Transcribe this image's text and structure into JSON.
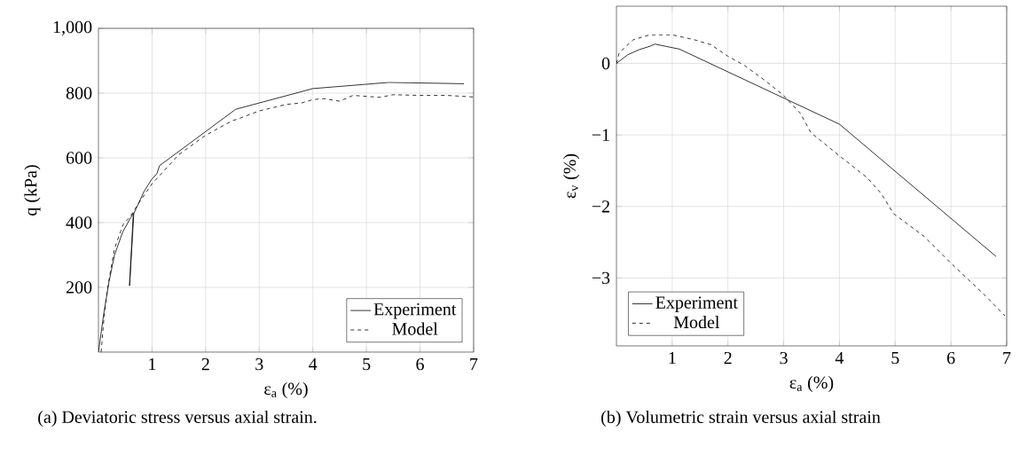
{
  "chart_data": [
    {
      "type": "line",
      "xlabel": "ε$_{a}$ (%)",
      "ylabel": "q (kPa)",
      "xlim": [
        0,
        7
      ],
      "ylim": [
        0,
        1000
      ],
      "xticks": [
        1,
        2,
        3,
        4,
        5,
        6,
        7
      ],
      "yticks": [
        200,
        400,
        600,
        800,
        {
          "value": 1000,
          "label": "1,000"
        }
      ],
      "grid": true,
      "legend": "bottom right",
      "annotations": [
        "(a) Deviatoric stress versus axial strain."
      ],
      "series": [
        {
          "name": "Experiment",
          "color": "#000000",
          "line_style": "solid",
          "x": [
            0,
            0.1,
            0.2,
            0.3,
            0.45,
            0.6,
            0.65,
            0.58,
            0.66,
            0.7,
            0.85,
            0.99,
            1.09,
            1.14,
            2.56,
            4.0,
            5.42,
            6.82
          ],
          "values": [
            0,
            120,
            220,
            300,
            370,
            415,
            430,
            205,
            428,
            442,
            496,
            533,
            551,
            576,
            750,
            814,
            833,
            829
          ]
        },
        {
          "name": "Model",
          "color": "#000000",
          "line_style": "dashed",
          "x": [
            0.05,
            0.1,
            0.17,
            0.3,
            0.46,
            0.6,
            0.75,
            1.0,
            1.5,
            2.0,
            2.5,
            2.6,
            3.0,
            3.5,
            3.8,
            4.0,
            4.2,
            4.5,
            4.75,
            5.0,
            5.25,
            5.5,
            6.0,
            6.5,
            7.0
          ],
          "values": [
            0,
            100,
            198,
            320,
            394,
            420,
            460,
            520,
            610,
            670,
            715,
            720,
            745,
            765,
            770,
            780,
            783,
            775,
            793,
            790,
            787,
            795,
            793,
            793,
            788
          ]
        }
      ]
    },
    {
      "type": "line",
      "xlabel": "ε$_{a}$ (%)",
      "ylabel": "ε$_{v}$ (%)",
      "xlim": [
        0,
        7
      ],
      "ylim": [
        -3.95,
        0.8
      ],
      "xticks": [
        1,
        2,
        3,
        4,
        5,
        6,
        7
      ],
      "yticks": [
        {
          "value": -3,
          "label": "−3"
        },
        {
          "value": -2,
          "label": "−2"
        },
        {
          "value": -1,
          "label": "−1"
        },
        0
      ],
      "grid": true,
      "legend": "bottom left",
      "annotations": [
        "(b) Volumetric strain versus axial strain"
      ],
      "series": [
        {
          "name": "Experiment",
          "color": "#000000",
          "line_style": "solid",
          "x": [
            0,
            0.2,
            0.4,
            0.6,
            0.69,
            1.13,
            4.0,
            6.81
          ],
          "values": [
            0,
            0.12,
            0.19,
            0.24,
            0.27,
            0.2,
            -0.85,
            -2.7
          ]
        },
        {
          "name": "Model",
          "color": "#000000",
          "line_style": "dashed",
          "x": [
            0,
            0.05,
            0.3,
            0.6,
            1.0,
            1.4,
            1.7,
            2.0,
            2.3,
            2.7,
            3.0,
            3.3,
            3.49,
            3.98,
            4.5,
            4.75,
            4.97,
            5.52,
            6.01,
            6.62,
            6.97
          ],
          "values": [
            0,
            0.15,
            0.33,
            0.4,
            0.4,
            0.33,
            0.26,
            0.1,
            -0.03,
            -0.26,
            -0.45,
            -0.7,
            -0.97,
            -1.28,
            -1.6,
            -1.82,
            -2.1,
            -2.42,
            -2.8,
            -3.25,
            -3.53
          ]
        }
      ]
    }
  ]
}
